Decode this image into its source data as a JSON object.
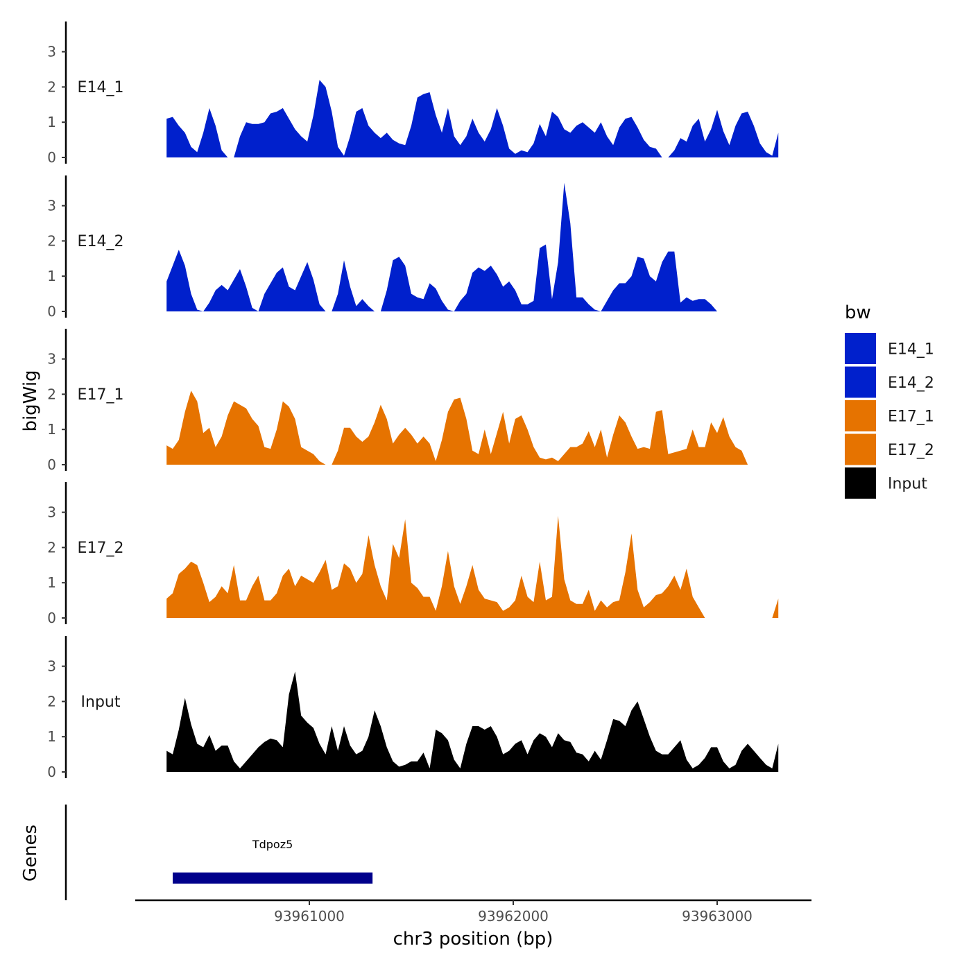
{
  "chart_data": {
    "type": "area",
    "title": "",
    "xlabel": "chr3 position (bp)",
    "ylabel": "bigWig",
    "genes_label": "Genes",
    "xlim": [
      93960200,
      93963400
    ],
    "ylim": [
      0,
      3.85
    ],
    "y_ticks": [
      0,
      1,
      2,
      3
    ],
    "x_ticks": [
      93961000,
      93962000,
      93963000
    ],
    "x_tick_labels": [
      "93961000",
      "93962000",
      "93963000"
    ],
    "legend": {
      "title": "bw",
      "position": "right"
    },
    "series": [
      {
        "name": "E14_1",
        "color": "#0020CC",
        "x": [
          93960300,
          93960330,
          93960360,
          93960390,
          93960420,
          93960450,
          93960480,
          93960510,
          93960540,
          93960570,
          93960600,
          93960630,
          93960660,
          93960690,
          93960720,
          93960750,
          93960780,
          93960810,
          93960840,
          93960870,
          93960900,
          93960930,
          93960960,
          93960990,
          93961020,
          93961050,
          93961080,
          93961110,
          93961140,
          93961170,
          93961200,
          93961230,
          93961260,
          93961290,
          93961320,
          93961350,
          93961380,
          93961410,
          93961440,
          93961470,
          93961500,
          93961530,
          93961560,
          93961590,
          93961620,
          93961650,
          93961680,
          93961710,
          93961740,
          93961770,
          93961800,
          93961830,
          93961860,
          93961890,
          93961920,
          93961950,
          93961980,
          93962010,
          93962040,
          93962070,
          93962100,
          93962130,
          93962160,
          93962190,
          93962220,
          93962250,
          93962280,
          93962310,
          93962340,
          93962370,
          93962400,
          93962430,
          93962460,
          93962490,
          93962520,
          93962550,
          93962580,
          93962610,
          93962640,
          93962670,
          93962700,
          93962730,
          93962760,
          93962790,
          93962820,
          93962850,
          93962880,
          93962910,
          93962940,
          93962970,
          93963000,
          93963030,
          93963060,
          93963090,
          93963120,
          93963150,
          93963180,
          93963210,
          93963240,
          93963270,
          93963300
        ],
        "values": [
          1.1,
          1.15,
          0.9,
          0.7,
          0.3,
          0.15,
          0.7,
          1.4,
          0.9,
          0.2,
          0,
          0,
          0.6,
          1.0,
          0.95,
          0.95,
          1.0,
          1.25,
          1.3,
          1.4,
          1.1,
          0.8,
          0.6,
          0.45,
          1.2,
          2.2,
          2.0,
          1.3,
          0.3,
          0.05,
          0.6,
          1.3,
          1.4,
          0.9,
          0.7,
          0.55,
          0.7,
          0.5,
          0.4,
          0.35,
          0.9,
          1.7,
          1.8,
          1.85,
          1.2,
          0.7,
          1.4,
          0.6,
          0.35,
          0.6,
          1.1,
          0.7,
          0.45,
          0.8,
          1.4,
          0.9,
          0.25,
          0.1,
          0.2,
          0.15,
          0.4,
          0.95,
          0.6,
          1.3,
          1.15,
          0.8,
          0.7,
          0.9,
          1.0,
          0.85,
          0.7,
          1.0,
          0.6,
          0.35,
          0.85,
          1.1,
          1.15,
          0.85,
          0.5,
          0.3,
          0.25,
          0,
          0,
          0.2,
          0.55,
          0.45,
          0.9,
          1.1,
          0.45,
          0.8,
          1.35,
          0.75,
          0.35,
          0.9,
          1.25,
          1.3,
          0.9,
          0.4,
          0.15,
          0.05,
          0.7
        ]
      },
      {
        "name": "E14_2",
        "color": "#0020CC",
        "x": [
          93960300,
          93960330,
          93960360,
          93960390,
          93960420,
          93960450,
          93960480,
          93960510,
          93960540,
          93960570,
          93960600,
          93960630,
          93960660,
          93960690,
          93960720,
          93960750,
          93960780,
          93960810,
          93960840,
          93960870,
          93960900,
          93960930,
          93960960,
          93960990,
          93961020,
          93961050,
          93961080,
          93961110,
          93961140,
          93961170,
          93961200,
          93961230,
          93961260,
          93961290,
          93961320,
          93961350,
          93961380,
          93961410,
          93961440,
          93961470,
          93961500,
          93961530,
          93961560,
          93961590,
          93961620,
          93961650,
          93961680,
          93961710,
          93961740,
          93961770,
          93961800,
          93961830,
          93961860,
          93961890,
          93961920,
          93961950,
          93961980,
          93962010,
          93962040,
          93962070,
          93962100,
          93962130,
          93962160,
          93962190,
          93962220,
          93962250,
          93962280,
          93962310,
          93962340,
          93962370,
          93962400,
          93962430,
          93962460,
          93962490,
          93962520,
          93962550,
          93962580,
          93962610,
          93962640,
          93962670,
          93962700,
          93962730,
          93962760,
          93962790,
          93962820,
          93962850,
          93962880,
          93962910,
          93962940,
          93962970,
          93963000,
          93963030,
          93963060,
          93963090,
          93963120,
          93963150,
          93963180,
          93963210,
          93963240,
          93963270,
          93963300
        ],
        "values": [
          0.85,
          1.3,
          1.75,
          1.3,
          0.5,
          0.05,
          0,
          0.25,
          0.6,
          0.75,
          0.6,
          0.9,
          1.2,
          0.7,
          0.1,
          0,
          0.5,
          0.8,
          1.1,
          1.25,
          0.7,
          0.6,
          1.0,
          1.4,
          0.9,
          0.2,
          0,
          0,
          0.5,
          1.45,
          0.7,
          0.15,
          0.35,
          0.15,
          0,
          0,
          0.6,
          1.45,
          1.55,
          1.3,
          0.5,
          0.4,
          0.35,
          0.8,
          0.65,
          0.3,
          0.05,
          0,
          0.3,
          0.5,
          1.1,
          1.25,
          1.15,
          1.3,
          1.05,
          0.7,
          0.85,
          0.6,
          0.2,
          0.2,
          0.3,
          1.8,
          1.9,
          0.35,
          1.4,
          3.65,
          2.5,
          0.4,
          0.4,
          0.2,
          0.05,
          0,
          0.3,
          0.6,
          0.8,
          0.8,
          1.0,
          1.55,
          1.5,
          1.0,
          0.85,
          1.4,
          1.7,
          1.7,
          0.25,
          0.4,
          0.3,
          0.35,
          0.35,
          0.2,
          0,
          0,
          0,
          0,
          0,
          0,
          0,
          0,
          0,
          0,
          0
        ]
      },
      {
        "name": "E17_1",
        "color": "#E67300",
        "x": [
          93960300,
          93960330,
          93960360,
          93960390,
          93960420,
          93960450,
          93960480,
          93960510,
          93960540,
          93960570,
          93960600,
          93960630,
          93960660,
          93960690,
          93960720,
          93960750,
          93960780,
          93960810,
          93960840,
          93960870,
          93960900,
          93960930,
          93960960,
          93960990,
          93961020,
          93961050,
          93961080,
          93961110,
          93961140,
          93961170,
          93961200,
          93961230,
          93961260,
          93961290,
          93961320,
          93961350,
          93961380,
          93961410,
          93961440,
          93961470,
          93961500,
          93961530,
          93961560,
          93961590,
          93961620,
          93961650,
          93961680,
          93961710,
          93961740,
          93961770,
          93961800,
          93961830,
          93961860,
          93961890,
          93961920,
          93961950,
          93961980,
          93962010,
          93962040,
          93962070,
          93962100,
          93962130,
          93962160,
          93962190,
          93962220,
          93962250,
          93962280,
          93962310,
          93962340,
          93962370,
          93962400,
          93962430,
          93962460,
          93962490,
          93962520,
          93962550,
          93962580,
          93962610,
          93962640,
          93962670,
          93962700,
          93962730,
          93962760,
          93962790,
          93962820,
          93962850,
          93962880,
          93962910,
          93962940,
          93962970,
          93963000,
          93963030,
          93963060,
          93963090,
          93963120,
          93963150,
          93963180,
          93963210,
          93963240,
          93963270,
          93963300
        ],
        "values": [
          0.55,
          0.45,
          0.7,
          1.5,
          2.1,
          1.8,
          0.9,
          1.05,
          0.5,
          0.8,
          1.4,
          1.8,
          1.7,
          1.6,
          1.3,
          1.1,
          0.5,
          0.45,
          1.0,
          1.8,
          1.65,
          1.3,
          0.5,
          0.4,
          0.3,
          0.1,
          0,
          0,
          0.4,
          1.05,
          1.05,
          0.8,
          0.65,
          0.8,
          1.2,
          1.7,
          1.3,
          0.6,
          0.85,
          1.05,
          0.85,
          0.6,
          0.8,
          0.6,
          0.1,
          0.7,
          1.5,
          1.85,
          1.9,
          1.3,
          0.4,
          0.3,
          1.0,
          0.3,
          0.9,
          1.5,
          0.6,
          1.3,
          1.4,
          1.0,
          0.5,
          0.2,
          0.15,
          0.2,
          0.1,
          0.3,
          0.5,
          0.5,
          0.6,
          0.95,
          0.5,
          1.0,
          0.2,
          0.85,
          1.4,
          1.2,
          0.8,
          0.45,
          0.5,
          0.45,
          1.5,
          1.55,
          0.3,
          0.35,
          0.4,
          0.45,
          1.0,
          0.5,
          0.5,
          1.2,
          0.9,
          1.35,
          0.8,
          0.5,
          0.4,
          0,
          0,
          0,
          0,
          0,
          0
        ]
      },
      {
        "name": "E17_2",
        "color": "#E67300",
        "x": [
          93960300,
          93960330,
          93960360,
          93960390,
          93960420,
          93960450,
          93960480,
          93960510,
          93960540,
          93960570,
          93960600,
          93960630,
          93960660,
          93960690,
          93960720,
          93960750,
          93960780,
          93960810,
          93960840,
          93960870,
          93960900,
          93960930,
          93960960,
          93960990,
          93961020,
          93961050,
          93961080,
          93961110,
          93961140,
          93961170,
          93961200,
          93961230,
          93961260,
          93961290,
          93961320,
          93961350,
          93961380,
          93961410,
          93961440,
          93961470,
          93961500,
          93961530,
          93961560,
          93961590,
          93961620,
          93961650,
          93961680,
          93961710,
          93961740,
          93961770,
          93961800,
          93961830,
          93961860,
          93961890,
          93961920,
          93961950,
          93961980,
          93962010,
          93962040,
          93962070,
          93962100,
          93962130,
          93962160,
          93962190,
          93962220,
          93962250,
          93962280,
          93962310,
          93962340,
          93962370,
          93962400,
          93962430,
          93962460,
          93962490,
          93962520,
          93962550,
          93962580,
          93962610,
          93962640,
          93962670,
          93962700,
          93962730,
          93962760,
          93962790,
          93962820,
          93962850,
          93962880,
          93962910,
          93962940,
          93962970,
          93963000,
          93963030,
          93963060,
          93963090,
          93963120,
          93963150,
          93963180,
          93963210,
          93963240,
          93963270,
          93963300
        ],
        "values": [
          0.55,
          0.7,
          1.25,
          1.4,
          1.6,
          1.5,
          1.0,
          0.45,
          0.6,
          0.9,
          0.7,
          1.5,
          0.5,
          0.5,
          0.9,
          1.2,
          0.5,
          0.5,
          0.7,
          1.2,
          1.4,
          0.9,
          1.2,
          1.1,
          1.0,
          1.3,
          1.65,
          0.8,
          0.9,
          1.55,
          1.4,
          1.0,
          1.25,
          2.35,
          1.5,
          0.9,
          0.5,
          2.1,
          1.7,
          2.8,
          1.0,
          0.85,
          0.6,
          0.6,
          0.2,
          0.9,
          1.9,
          0.9,
          0.4,
          0.9,
          1.5,
          0.8,
          0.55,
          0.5,
          0.45,
          0.2,
          0.3,
          0.5,
          1.2,
          0.6,
          0.45,
          1.6,
          0.5,
          0.6,
          2.9,
          1.1,
          0.5,
          0.4,
          0.4,
          0.8,
          0.2,
          0.5,
          0.3,
          0.45,
          0.5,
          1.3,
          2.4,
          0.8,
          0.3,
          0.45,
          0.65,
          0.7,
          0.9,
          1.2,
          0.8,
          1.4,
          0.6,
          0.3,
          0,
          0,
          0,
          0,
          0,
          0,
          0,
          0,
          0,
          0,
          0,
          0,
          0.55
        ]
      },
      {
        "name": "Input",
        "color": "#000000",
        "x": [
          93960300,
          93960330,
          93960360,
          93960390,
          93960420,
          93960450,
          93960480,
          93960510,
          93960540,
          93960570,
          93960600,
          93960630,
          93960660,
          93960690,
          93960720,
          93960750,
          93960780,
          93960810,
          93960840,
          93960870,
          93960900,
          93960930,
          93960960,
          93960990,
          93961020,
          93961050,
          93961080,
          93961110,
          93961140,
          93961170,
          93961200,
          93961230,
          93961260,
          93961290,
          93961320,
          93961350,
          93961380,
          93961410,
          93961440,
          93961470,
          93961500,
          93961530,
          93961560,
          93961590,
          93961620,
          93961650,
          93961680,
          93961710,
          93961740,
          93961770,
          93961800,
          93961830,
          93961860,
          93961890,
          93961920,
          93961950,
          93961980,
          93962010,
          93962040,
          93962070,
          93962100,
          93962130,
          93962160,
          93962190,
          93962220,
          93962250,
          93962280,
          93962310,
          93962340,
          93962370,
          93962400,
          93962430,
          93962460,
          93962490,
          93962520,
          93962550,
          93962580,
          93962610,
          93962640,
          93962670,
          93962700,
          93962730,
          93962760,
          93962790,
          93962820,
          93962850,
          93962880,
          93962910,
          93962940,
          93962970,
          93963000,
          93963030,
          93963060,
          93963090,
          93963120,
          93963150,
          93963180,
          93963210,
          93963240,
          93963270,
          93963300
        ],
        "values": [
          0.6,
          0.5,
          1.2,
          2.1,
          1.35,
          0.8,
          0.7,
          1.05,
          0.6,
          0.75,
          0.75,
          0.3,
          0.1,
          0.3,
          0.5,
          0.7,
          0.85,
          0.95,
          0.9,
          0.7,
          2.2,
          2.85,
          1.6,
          1.4,
          1.25,
          0.8,
          0.5,
          1.3,
          0.6,
          1.3,
          0.75,
          0.5,
          0.6,
          1.0,
          1.75,
          1.3,
          0.7,
          0.3,
          0.15,
          0.2,
          0.3,
          0.3,
          0.55,
          0.1,
          1.2,
          1.1,
          0.9,
          0.35,
          0.1,
          0.8,
          1.3,
          1.3,
          1.2,
          1.3,
          1.0,
          0.5,
          0.6,
          0.8,
          0.9,
          0.5,
          0.9,
          1.1,
          1.0,
          0.7,
          1.1,
          0.9,
          0.85,
          0.55,
          0.5,
          0.3,
          0.6,
          0.35,
          0.9,
          1.5,
          1.45,
          1.3,
          1.75,
          2.0,
          1.5,
          1.0,
          0.6,
          0.5,
          0.5,
          0.7,
          0.9,
          0.35,
          0.1,
          0.2,
          0.4,
          0.7,
          0.7,
          0.3,
          0.1,
          0.2,
          0.6,
          0.8,
          0.6,
          0.4,
          0.2,
          0.1,
          0.8
        ]
      }
    ],
    "genes": [
      {
        "name": "Tdpoz5",
        "start": 93960330,
        "end": 93961310,
        "color": "#00008B"
      }
    ]
  }
}
